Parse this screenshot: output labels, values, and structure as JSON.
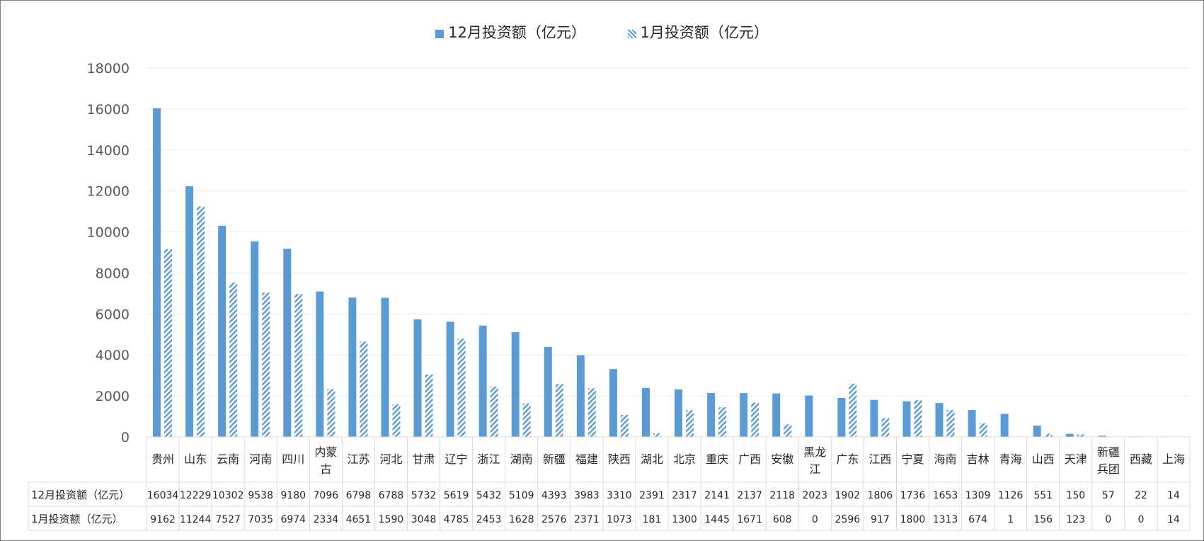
{
  "chart_data": {
    "type": "bar",
    "categories": [
      "贵州",
      "山东",
      "云南",
      "河南",
      "四川",
      "内蒙古",
      "江苏",
      "河北",
      "甘肃",
      "辽宁",
      "浙江",
      "湖南",
      "新疆",
      "福建",
      "陕西",
      "湖北",
      "北京",
      "重庆",
      "广西",
      "安徽",
      "黑龙江",
      "广东",
      "江西",
      "宁夏",
      "海南",
      "吉林",
      "青海",
      "山西",
      "天津",
      "新疆兵团",
      "西藏",
      "上海"
    ],
    "category_display": [
      [
        "贵州"
      ],
      [
        "山东"
      ],
      [
        "云南"
      ],
      [
        "河南"
      ],
      [
        "四川"
      ],
      [
        "内蒙",
        "古"
      ],
      [
        "江苏"
      ],
      [
        "河北"
      ],
      [
        "甘肃"
      ],
      [
        "辽宁"
      ],
      [
        "浙江"
      ],
      [
        "湖南"
      ],
      [
        "新疆"
      ],
      [
        "福建"
      ],
      [
        "陕西"
      ],
      [
        "湖北"
      ],
      [
        "北京"
      ],
      [
        "重庆"
      ],
      [
        "广西"
      ],
      [
        "安徽"
      ],
      [
        "黑龙",
        "江"
      ],
      [
        "广东"
      ],
      [
        "江西"
      ],
      [
        "宁夏"
      ],
      [
        "海南"
      ],
      [
        "吉林"
      ],
      [
        "青海"
      ],
      [
        "山西"
      ],
      [
        "天津"
      ],
      [
        "新疆",
        "兵团"
      ],
      [
        "西藏"
      ],
      [
        "上海"
      ]
    ],
    "series": [
      {
        "name": "12月投资额（亿元）",
        "style": "solid",
        "color": "#5b9bd5",
        "values": [
          16034,
          12229,
          10302,
          9538,
          9180,
          7096,
          6798,
          6788,
          5732,
          5619,
          5432,
          5109,
          4393,
          3983,
          3310,
          2391,
          2317,
          2141,
          2137,
          2118,
          2023,
          1902,
          1806,
          1736,
          1653,
          1309,
          1126,
          551,
          150,
          57,
          22,
          14
        ]
      },
      {
        "name": "1月投资额（亿元）",
        "style": "hatched",
        "color": "#5b9bd5",
        "values": [
          9162,
          11244,
          7527,
          7035,
          6974,
          2334,
          4651,
          1590,
          3048,
          4785,
          2453,
          1628,
          2576,
          2371,
          1073,
          181,
          1300,
          1445,
          1671,
          608,
          0,
          2596,
          917,
          1800,
          1313,
          674,
          1,
          156,
          123,
          0,
          0,
          14
        ]
      }
    ],
    "ylim": [
      0,
      18000
    ],
    "yticks": [
      0,
      2000,
      4000,
      6000,
      8000,
      10000,
      12000,
      14000,
      16000,
      18000
    ],
    "grid": true,
    "legend_position": "top-center",
    "data_table": true
  }
}
